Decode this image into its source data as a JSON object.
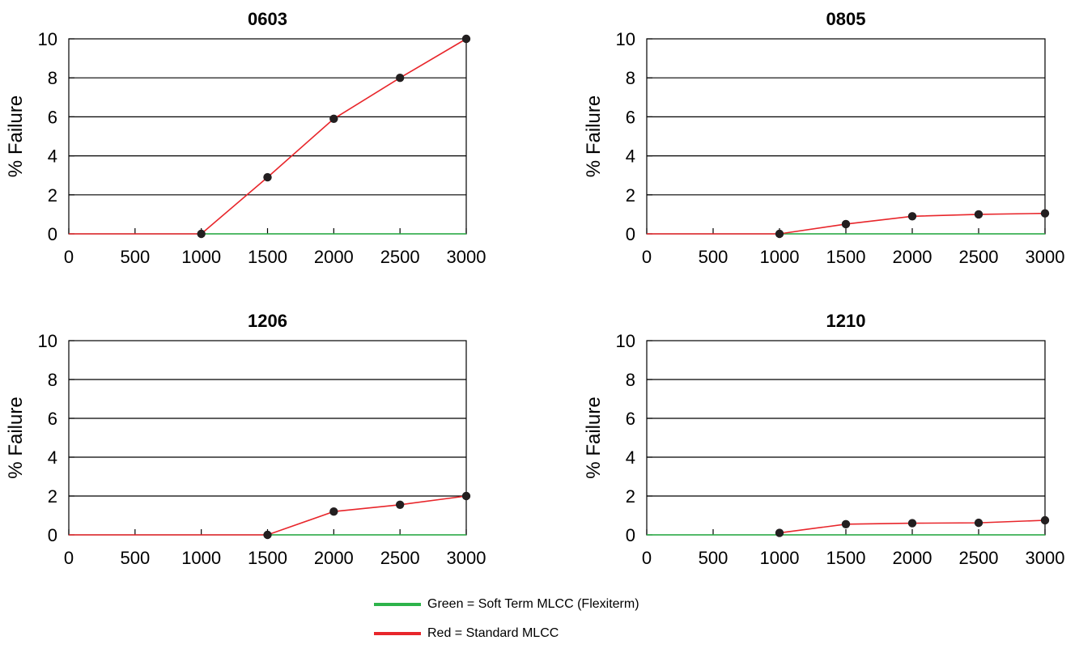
{
  "chart_data": [
    {
      "type": "line",
      "title": "0603",
      "ylabel": "% Failure",
      "xlabel": "",
      "xlim": [
        0,
        3000
      ],
      "ylim": [
        0,
        10
      ],
      "x_ticks": [
        0,
        500,
        1000,
        1500,
        2000,
        2500,
        3000
      ],
      "y_ticks": [
        0,
        2,
        4,
        6,
        8,
        10
      ],
      "grid": "horizontal",
      "series": [
        {
          "name": "Soft Term MLCC (Flexiterm)",
          "color": "#2db34a",
          "x": [
            1000,
            3000
          ],
          "y": [
            0,
            0
          ],
          "markers": false
        },
        {
          "name": "Standard MLCC",
          "color": "#e8262b",
          "x": [
            0,
            1000,
            1500,
            2000,
            2500,
            3000
          ],
          "y": [
            0,
            0,
            2.9,
            5.9,
            8.0,
            10.0
          ],
          "markers": [
            false,
            true,
            true,
            true,
            true,
            true
          ]
        }
      ]
    },
    {
      "type": "line",
      "title": "0805",
      "ylabel": "% Failure",
      "xlabel": "",
      "xlim": [
        0,
        3000
      ],
      "ylim": [
        0,
        10
      ],
      "x_ticks": [
        0,
        500,
        1000,
        1500,
        2000,
        2500,
        3000
      ],
      "y_ticks": [
        0,
        2,
        4,
        6,
        8,
        10
      ],
      "grid": "horizontal",
      "series": [
        {
          "name": "Soft Term MLCC (Flexiterm)",
          "color": "#2db34a",
          "x": [
            1000,
            3000
          ],
          "y": [
            0,
            0
          ],
          "markers": false
        },
        {
          "name": "Standard MLCC",
          "color": "#e8262b",
          "x": [
            0,
            1000,
            1500,
            2000,
            2500,
            3000
          ],
          "y": [
            0,
            0,
            0.5,
            0.9,
            1.0,
            1.05
          ],
          "markers": [
            false,
            true,
            true,
            true,
            true,
            true
          ]
        }
      ]
    },
    {
      "type": "line",
      "title": "1206",
      "ylabel": "% Failure",
      "xlabel": "",
      "xlim": [
        0,
        3000
      ],
      "ylim": [
        0,
        10
      ],
      "x_ticks": [
        0,
        500,
        1000,
        1500,
        2000,
        2500,
        3000
      ],
      "y_ticks": [
        0,
        2,
        4,
        6,
        8,
        10
      ],
      "grid": "horizontal",
      "series": [
        {
          "name": "Soft Term MLCC (Flexiterm)",
          "color": "#2db34a",
          "x": [
            1500,
            3000
          ],
          "y": [
            0,
            0
          ],
          "markers": false
        },
        {
          "name": "Standard MLCC",
          "color": "#e8262b",
          "x": [
            0,
            1500,
            2000,
            2500,
            3000
          ],
          "y": [
            0,
            0,
            1.2,
            1.55,
            2.0
          ],
          "markers": [
            false,
            true,
            true,
            true,
            true
          ]
        }
      ]
    },
    {
      "type": "line",
      "title": "1210",
      "ylabel": "% Failure",
      "xlabel": "",
      "xlim": [
        0,
        3000
      ],
      "ylim": [
        0,
        10
      ],
      "x_ticks": [
        0,
        500,
        1000,
        1500,
        2000,
        2500,
        3000
      ],
      "y_ticks": [
        0,
        2,
        4,
        6,
        8,
        10
      ],
      "grid": "horizontal",
      "series": [
        {
          "name": "Soft Term MLCC (Flexiterm)",
          "color": "#2db34a",
          "x": [
            0,
            3000
          ],
          "y": [
            0,
            0
          ],
          "markers": false
        },
        {
          "name": "Standard MLCC",
          "color": "#e8262b",
          "x": [
            1000,
            1500,
            2000,
            2500,
            3000
          ],
          "y": [
            0.1,
            0.55,
            0.6,
            0.62,
            0.75
          ],
          "markers": [
            true,
            true,
            true,
            true,
            true
          ]
        }
      ]
    }
  ],
  "legend": {
    "items": [
      {
        "label": "Green = Soft Term MLCC (Flexiterm)",
        "color": "#2db34a"
      },
      {
        "label": "Red = Standard MLCC",
        "color": "#e8262b"
      }
    ]
  }
}
